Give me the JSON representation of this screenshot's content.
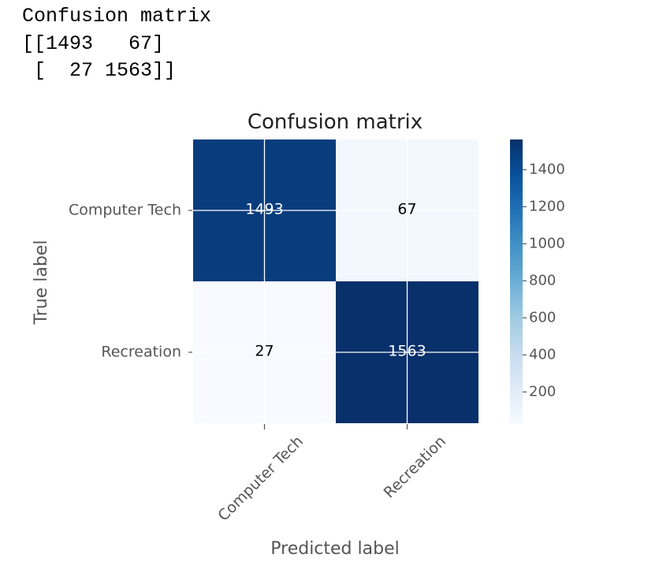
{
  "console": {
    "lines": [
      "Confusion matrix",
      "[[1493   67]",
      " [  27 1563]]"
    ]
  },
  "chart_data": {
    "type": "heatmap",
    "title": "Confusion matrix",
    "xlabel": "Predicted label",
    "ylabel": "True label",
    "x_categories": [
      "Computer Tech",
      "Recreation"
    ],
    "y_categories": [
      "Computer Tech",
      "Recreation"
    ],
    "values": [
      [
        1493,
        67
      ],
      [
        27,
        1563
      ]
    ],
    "colormap": "Blues",
    "colormap_stops": [
      "#f7fbff",
      "#deebf7",
      "#c6dbef",
      "#9ecae1",
      "#6baed6",
      "#4292c6",
      "#2171b5",
      "#08519c",
      "#08306b"
    ],
    "colorbar": {
      "range": [
        27,
        1563
      ],
      "ticks": [
        200,
        400,
        600,
        800,
        1000,
        1200,
        1400
      ]
    },
    "grid": true,
    "grid_color": "#ffffff",
    "text_color_dark": "#000000",
    "text_color_light": "#ffffff",
    "axis_text_color": "#555555"
  }
}
